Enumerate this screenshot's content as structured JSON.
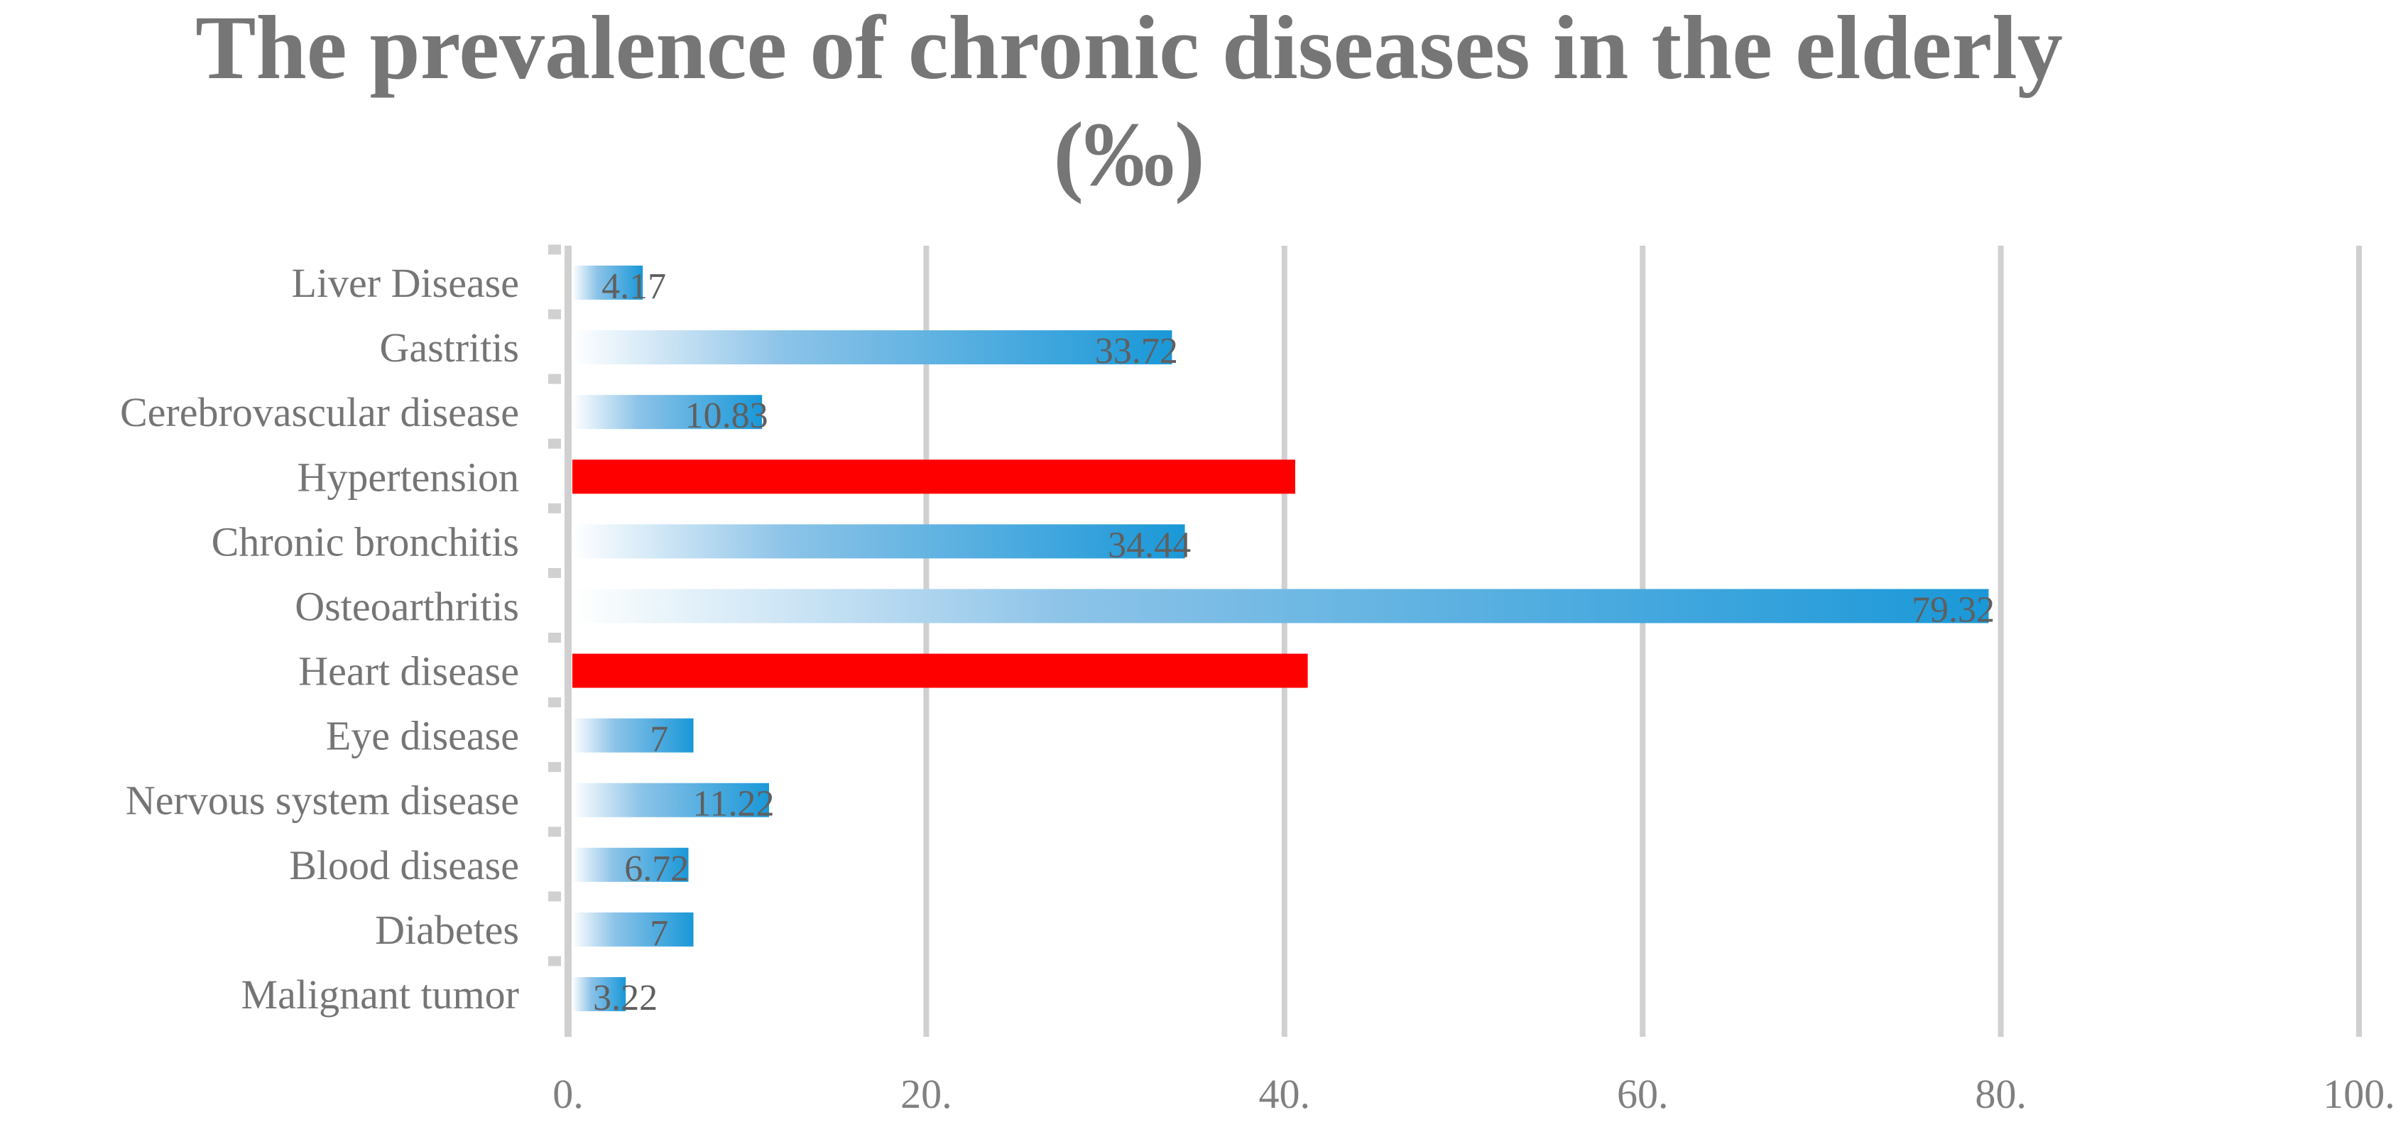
{
  "chart_data": {
    "type": "bar",
    "orientation": "horizontal",
    "title": "The prevalence of chronic diseases in the elderly",
    "subtitle": "(‰)",
    "xlabel": "",
    "ylabel": "",
    "xlim": [
      0,
      100
    ],
    "x_ticks": [
      "0.",
      "20.",
      "40.",
      "60.",
      "80.",
      "100."
    ],
    "grid": true,
    "categories": [
      "Liver Disease",
      "Gastritis",
      "Cerebrovascular disease",
      "Hypertension",
      "Chronic bronchitis",
      "Osteoarthritis",
      "Heart disease",
      "Eye disease",
      "Nervous system disease",
      "Blood disease",
      "Diabetes",
      "Malignant tumor"
    ],
    "values": [
      4.17,
      33.72,
      10.83,
      40.6,
      34.44,
      79.32,
      41.3,
      7,
      11.22,
      6.72,
      7,
      3.22
    ],
    "data_labels": [
      "4.17",
      "33.72",
      "10.83",
      null,
      "34.44",
      "79.32",
      null,
      "7",
      "11.22",
      "6.72",
      "7",
      "3.22"
    ],
    "highlighted": [
      false,
      false,
      false,
      true,
      false,
      false,
      true,
      false,
      false,
      false,
      false,
      false
    ],
    "colors": {
      "bar": "#1a98d8",
      "highlight": "#ff0000",
      "grid": "#d0d0d0",
      "text": "#757575"
    }
  }
}
